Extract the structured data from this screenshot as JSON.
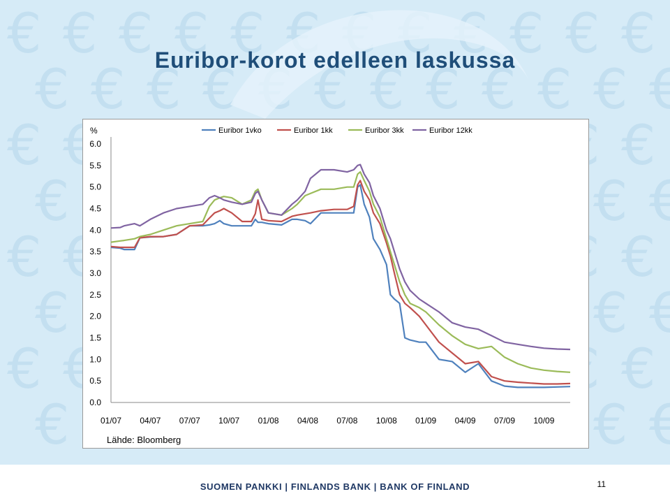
{
  "title": "Euribor-korot edelleen laskussa",
  "footer": "SUOMEN PANKKI | FINLANDS BANK | BANK OF FINLAND",
  "page_number": "11",
  "colors": {
    "background": "#d6ebf7",
    "title": "#1f4e79",
    "footer_text": "#1f3864",
    "euro_watermark": "#c3dff0"
  },
  "chart_data": {
    "type": "line",
    "ylabel": "%",
    "source": "Lähde: Bloomberg",
    "ylim": [
      0,
      6
    ],
    "yticks": [
      "6.0",
      "5.5",
      "5.0",
      "4.5",
      "4.0",
      "3.5",
      "3.0",
      "2.5",
      "2.0",
      "1.5",
      "1.0",
      "0.5",
      "0.0"
    ],
    "xticks": [
      "01/07",
      "04/07",
      "07/07",
      "10/07",
      "01/08",
      "04/08",
      "07/08",
      "10/08",
      "01/09",
      "04/09",
      "07/09",
      "10/09"
    ],
    "x_range_months": [
      0,
      35
    ],
    "x": [
      0,
      0.7,
      1.0,
      1.8,
      2.2,
      3.0,
      4.0,
      5.0,
      6.0,
      7.0,
      7.5,
      7.9,
      8.3,
      8.6,
      9.2,
      10.0,
      10.7,
      11.0,
      11.2,
      11.5,
      12.0,
      13.0,
      13.8,
      14.2,
      14.8,
      15.2,
      16.0,
      17.0,
      18.0,
      18.5,
      18.8,
      19.0,
      19.3,
      19.7,
      20.0,
      20.5,
      21.0,
      21.3,
      21.6,
      22.0,
      22.4,
      22.8,
      23.5,
      24.0,
      25.0,
      26.0,
      27.0,
      28.0,
      29.0,
      30.0,
      31.0,
      32.0,
      33.0,
      34.0,
      35.0
    ],
    "series": [
      {
        "name": "Euribor 1vko",
        "color": "#4f81bd",
        "values": [
          3.6,
          3.58,
          3.55,
          3.55,
          3.82,
          3.84,
          3.85,
          3.9,
          4.1,
          4.1,
          4.12,
          4.15,
          4.22,
          4.15,
          4.1,
          4.1,
          4.1,
          4.25,
          4.18,
          4.18,
          4.15,
          4.12,
          4.25,
          4.25,
          4.22,
          4.15,
          4.4,
          4.4,
          4.4,
          4.4,
          5.0,
          5.05,
          4.6,
          4.3,
          3.8,
          3.55,
          3.2,
          2.5,
          2.4,
          2.3,
          1.5,
          1.45,
          1.4,
          1.4,
          1.0,
          0.95,
          0.7,
          0.9,
          0.5,
          0.38,
          0.35,
          0.35,
          0.35,
          0.36,
          0.37
        ]
      },
      {
        "name": "Euribor 1kk",
        "color": "#c0504d",
        "values": [
          3.62,
          3.6,
          3.6,
          3.6,
          3.82,
          3.85,
          3.85,
          3.9,
          4.1,
          4.12,
          4.28,
          4.4,
          4.45,
          4.5,
          4.4,
          4.2,
          4.2,
          4.38,
          4.7,
          4.25,
          4.22,
          4.2,
          4.32,
          4.35,
          4.38,
          4.4,
          4.45,
          4.48,
          4.48,
          4.55,
          5.05,
          5.15,
          4.9,
          4.7,
          4.4,
          4.15,
          3.7,
          3.4,
          3.0,
          2.5,
          2.3,
          2.2,
          2.0,
          1.8,
          1.4,
          1.15,
          0.9,
          0.95,
          0.6,
          0.5,
          0.47,
          0.45,
          0.43,
          0.43,
          0.44
        ]
      },
      {
        "name": "Euribor 3kk",
        "color": "#9bbb59",
        "values": [
          3.72,
          3.75,
          3.76,
          3.8,
          3.85,
          3.9,
          4.0,
          4.1,
          4.15,
          4.2,
          4.55,
          4.7,
          4.75,
          4.78,
          4.75,
          4.6,
          4.7,
          4.9,
          4.95,
          4.7,
          4.4,
          4.35,
          4.5,
          4.6,
          4.8,
          4.85,
          4.95,
          4.95,
          5.0,
          5.0,
          5.3,
          5.35,
          5.15,
          4.9,
          4.6,
          4.3,
          3.8,
          3.5,
          3.2,
          2.8,
          2.5,
          2.3,
          2.2,
          2.1,
          1.8,
          1.55,
          1.35,
          1.25,
          1.3,
          1.05,
          0.9,
          0.8,
          0.75,
          0.72,
          0.7
        ]
      },
      {
        "name": "Euribor 12kk",
        "color": "#8064a2",
        "values": [
          4.05,
          4.06,
          4.1,
          4.15,
          4.1,
          4.25,
          4.4,
          4.5,
          4.55,
          4.6,
          4.75,
          4.8,
          4.75,
          4.7,
          4.65,
          4.6,
          4.65,
          4.85,
          4.9,
          4.7,
          4.4,
          4.35,
          4.6,
          4.7,
          4.9,
          5.2,
          5.4,
          5.4,
          5.35,
          5.4,
          5.5,
          5.52,
          5.3,
          5.1,
          4.8,
          4.5,
          4.0,
          3.8,
          3.5,
          3.1,
          2.8,
          2.6,
          2.4,
          2.3,
          2.1,
          1.85,
          1.75,
          1.7,
          1.55,
          1.4,
          1.35,
          1.3,
          1.26,
          1.24,
          1.23
        ]
      }
    ],
    "legend_position": "top"
  }
}
